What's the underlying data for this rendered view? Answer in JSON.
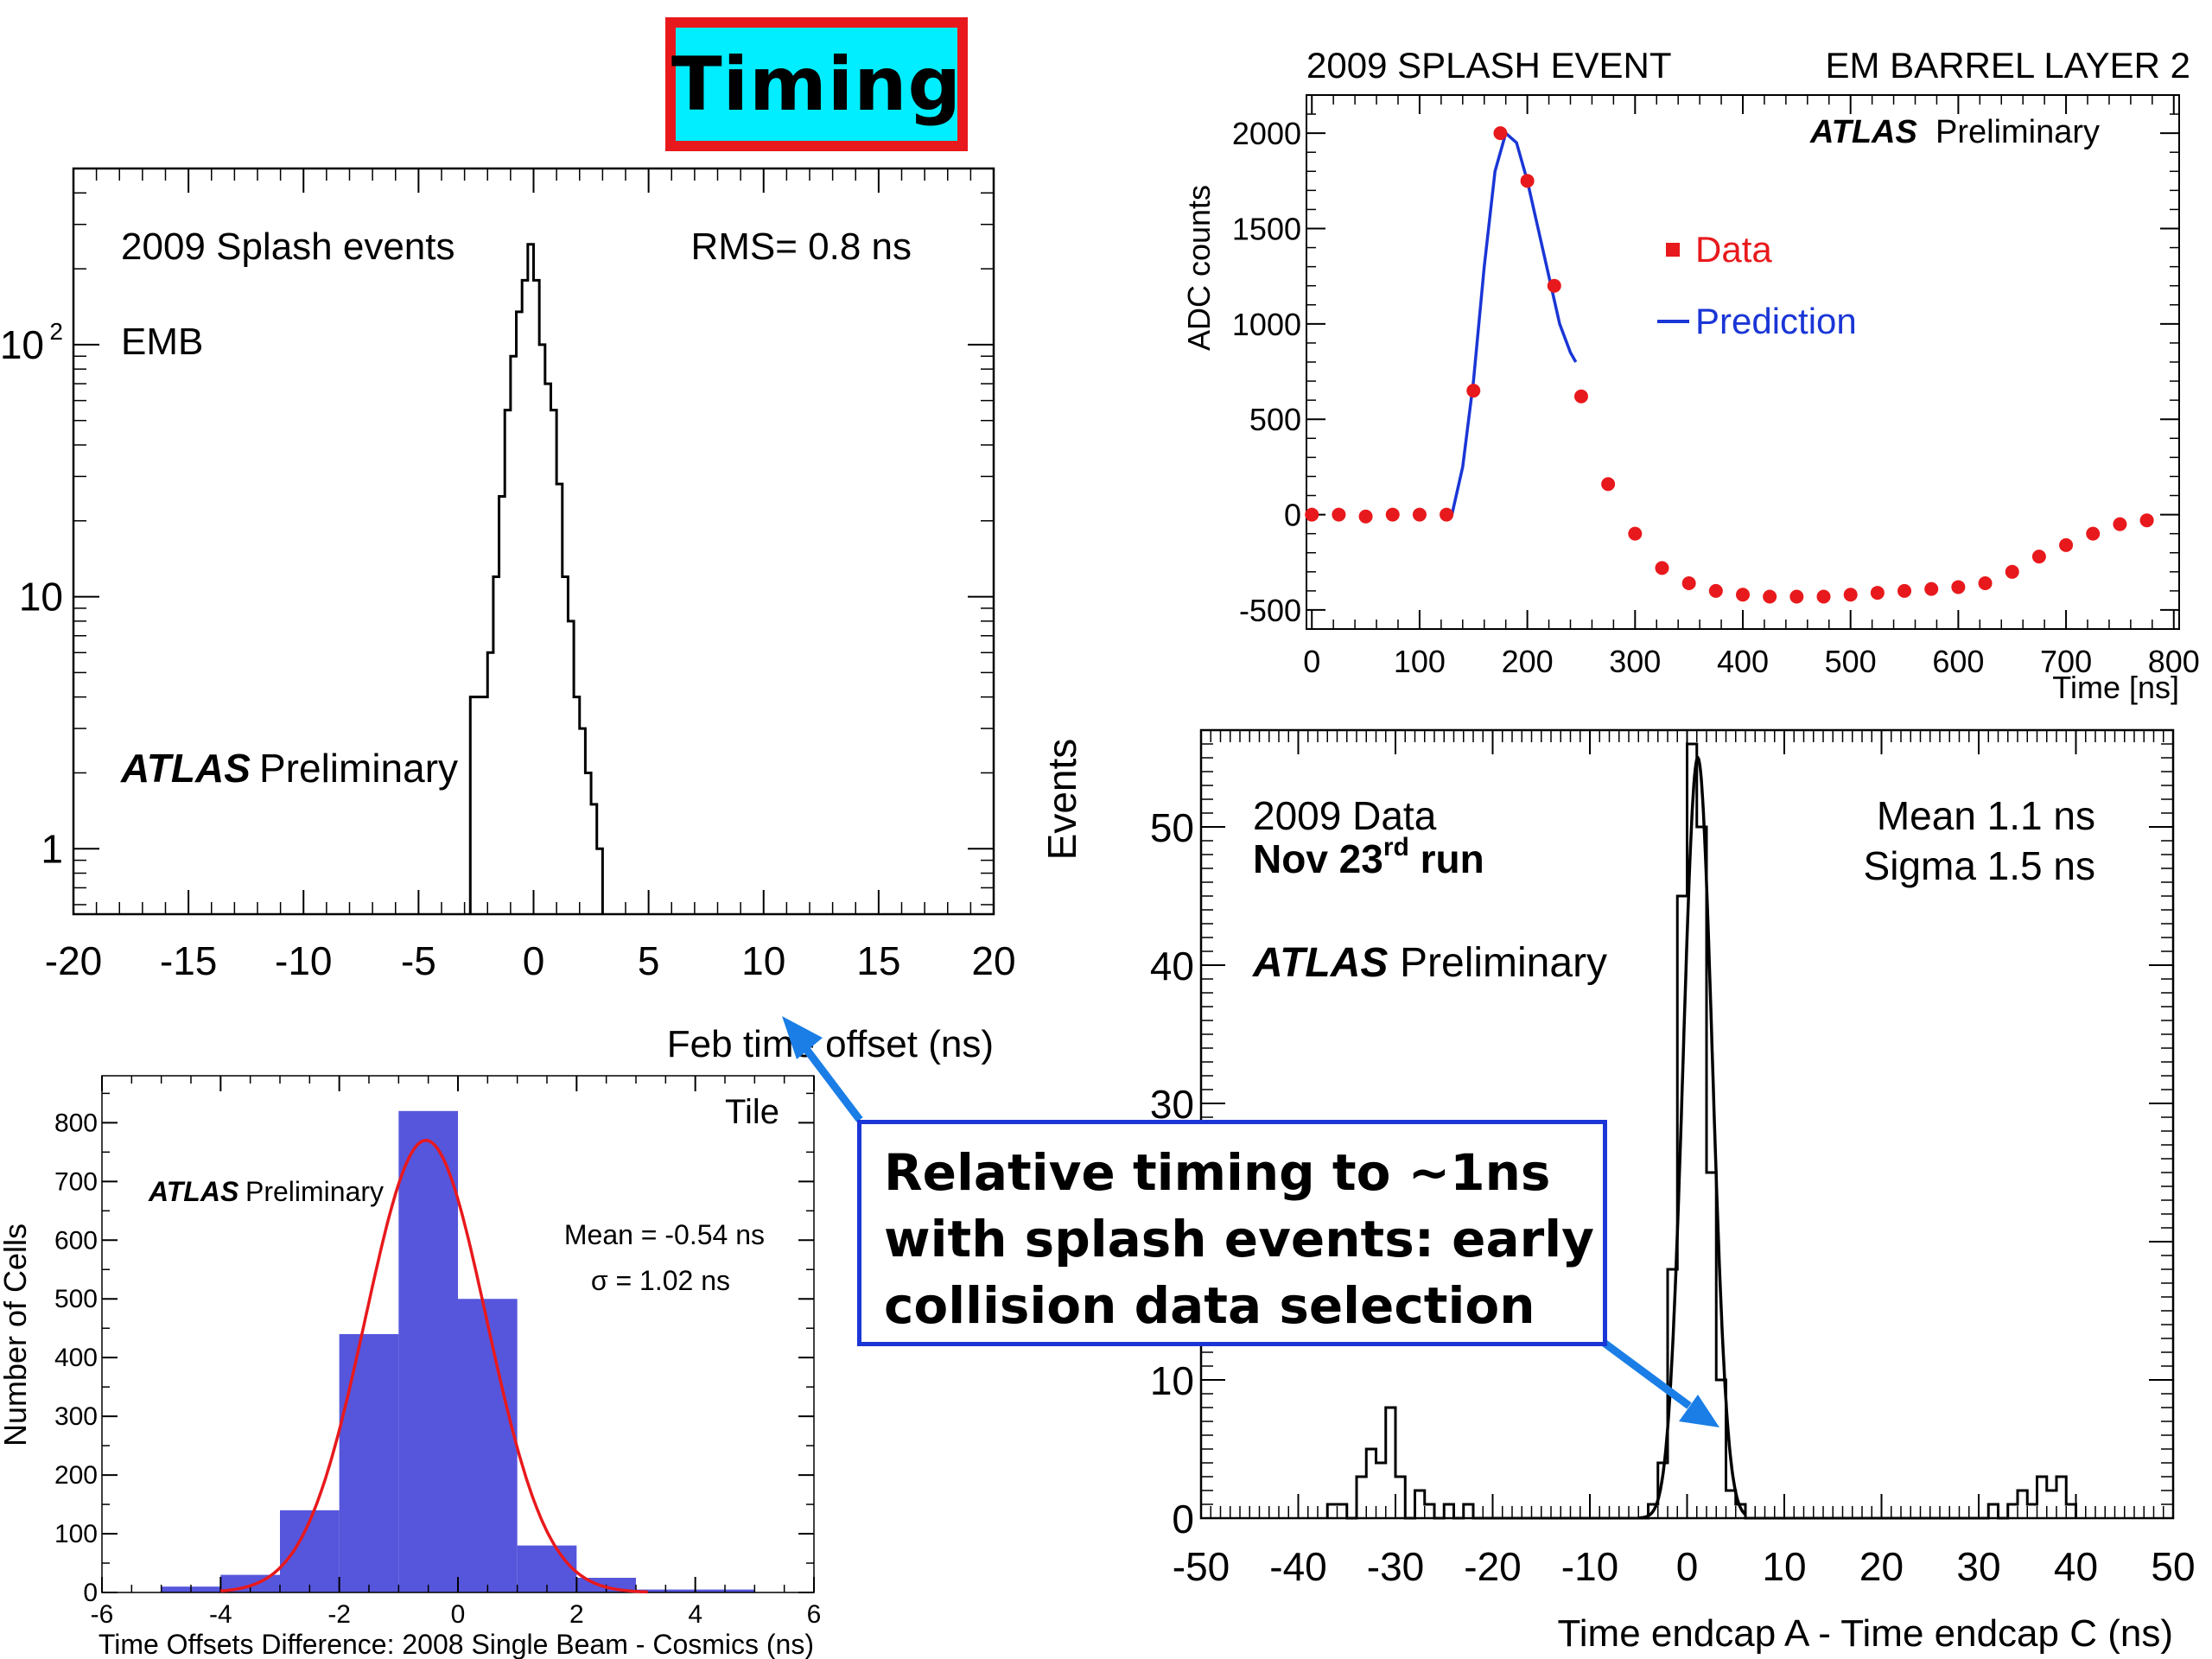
{
  "slide": {
    "title": "Timing",
    "callout_lines": [
      "Relative timing to ~1ns",
      "with splash events: early",
      "collision data selection"
    ],
    "colors": {
      "title_bg": "#00eeff",
      "title_border": "#e8191c",
      "callout_border": "#1a36d6",
      "arrow": "#1a7ee6"
    }
  },
  "chart_data": [
    {
      "id": "emb",
      "type": "histogram",
      "yscale": "log",
      "xlim": [
        -20,
        20
      ],
      "ylim": [
        0.55,
        500
      ],
      "xticks": [
        -20,
        -15,
        -10,
        -5,
        0,
        5,
        10,
        15,
        20
      ],
      "yticks": [
        {
          "value": 1,
          "label": "1"
        },
        {
          "value": 10,
          "label": "10"
        },
        {
          "value": 100,
          "label": "10",
          "sup": "2"
        }
      ],
      "xlabel": "Feb time offset (ns)",
      "annotations": {
        "text1": "2009 Splash events",
        "text2": "EMB",
        "rms": "RMS= 0.8 ns",
        "atlas": "ATLAS",
        "prelim": "Preliminary"
      },
      "bin_edges": [
        -2.75,
        -2.5,
        -2.25,
        -2.0,
        -1.75,
        -1.5,
        -1.25,
        -1.0,
        -0.75,
        -0.5,
        -0.25,
        0.0,
        0.25,
        0.5,
        0.75,
        1.0,
        1.25,
        1.5,
        1.75,
        2.0,
        2.25,
        2.5,
        2.75,
        3.0
      ],
      "counts": [
        4,
        4,
        4,
        6,
        12,
        25,
        55,
        90,
        135,
        180,
        250,
        180,
        100,
        70,
        55,
        28,
        12,
        8,
        4,
        3,
        2,
        1.5,
        1.0
      ]
    },
    {
      "id": "splash",
      "type": "scatter",
      "title_left": "2009 SPLASH EVENT",
      "title_right": "EM BARREL LAYER 2",
      "xlim": [
        -5,
        805
      ],
      "ylim": [
        -600,
        2200
      ],
      "xticks": [
        0,
        100,
        200,
        300,
        400,
        500,
        600,
        700,
        800
      ],
      "yticks": [
        -500,
        0,
        500,
        1000,
        1500,
        2000
      ],
      "xlabel": "Time [ns]",
      "ylabel": "ADC counts",
      "annotations": {
        "atlas": "ATLAS",
        "prelim": "Preliminary"
      },
      "legend": [
        {
          "label": "Data",
          "color": "#e8191c"
        },
        {
          "label": "Prediction",
          "color": "#1a36d6"
        }
      ],
      "series": [
        {
          "name": "Data",
          "x": [
            0,
            25,
            50,
            75,
            100,
            125,
            150,
            175,
            200,
            225,
            250,
            275,
            300,
            325,
            350,
            375,
            400,
            425,
            450,
            475,
            500,
            525,
            550,
            575,
            600,
            625,
            650,
            675,
            700,
            725,
            750,
            775
          ],
          "y": [
            0,
            0,
            -10,
            0,
            0,
            0,
            650,
            2000,
            1750,
            1200,
            620,
            160,
            -100,
            -280,
            -360,
            -400,
            -420,
            -430,
            -430,
            -430,
            -420,
            -410,
            -400,
            -390,
            -380,
            -360,
            -300,
            -220,
            -160,
            -100,
            -50,
            -30
          ]
        },
        {
          "name": "Prediction",
          "x": [
            130,
            140,
            150,
            160,
            170,
            180,
            190,
            200,
            210,
            220,
            230,
            240,
            245
          ],
          "y": [
            0,
            250,
            700,
            1300,
            1800,
            2000,
            1950,
            1750,
            1500,
            1250,
            1000,
            850,
            800
          ]
        }
      ]
    },
    {
      "id": "tile",
      "type": "histogram",
      "xlim": [
        -6,
        6
      ],
      "ylim": [
        0,
        880
      ],
      "xticks": [
        -6,
        -4,
        -2,
        0,
        2,
        4,
        6
      ],
      "yticks": [
        0,
        100,
        200,
        300,
        400,
        500,
        600,
        700,
        800
      ],
      "xlabel": "Time Offsets Difference: 2008 Single Beam - Cosmics (ns)",
      "ylabel": "Number of Cells",
      "annotations": {
        "tile": "Tile",
        "atlas": "ATLAS",
        "prelim": "Preliminary",
        "mean": "Mean = -0.54 ns",
        "sigma": "σ = 1.02 ns"
      },
      "bin_edges": [
        -5,
        -4,
        -3,
        -2,
        -1,
        0,
        1,
        2,
        3,
        4,
        5
      ],
      "counts": [
        10,
        30,
        140,
        440,
        820,
        500,
        80,
        25,
        5,
        5
      ],
      "fit": {
        "mean": -0.54,
        "sigma": 1.02,
        "amplitude": 770
      },
      "colors": {
        "fill": "#5656dc",
        "fit": "#e8191c"
      }
    },
    {
      "id": "endcap",
      "type": "histogram",
      "xlim": [
        -50,
        50
      ],
      "ylim": [
        0,
        57
      ],
      "xticks": [
        -50,
        -40,
        -30,
        -20,
        -10,
        0,
        10,
        20,
        30,
        40,
        50
      ],
      "yticks": [
        0,
        10,
        20,
        30,
        40,
        50
      ],
      "xlabel": "Time endcap A - Time endcap C (ns)",
      "ylabel": "Events",
      "annotations": {
        "text1": "2009 Data",
        "text2_pre": "Nov 23",
        "text2_sup": "rd",
        "text2_post": " run",
        "mean": "Mean  1.1 ns",
        "sigma": "Sigma 1.5 ns",
        "atlas": "ATLAS",
        "prelim": "Preliminary"
      },
      "bin_edges": [
        -37,
        -36,
        -35,
        -34,
        -33,
        -32,
        -31,
        -30,
        -29,
        -28,
        -27,
        -26,
        -25,
        -24,
        -23,
        -22,
        -21,
        -20,
        -19,
        -18,
        -17,
        -16,
        -15,
        -14,
        -13,
        -12,
        -11,
        -10,
        -9,
        -8,
        -7,
        -6,
        -5,
        -4,
        -3,
        -2,
        -1,
        0,
        1,
        2,
        3,
        4,
        5,
        6,
        7,
        8,
        9,
        10,
        11,
        12,
        13,
        14,
        15,
        16,
        17,
        18,
        19,
        20,
        21,
        22,
        23,
        24,
        25,
        26,
        27,
        28,
        29,
        30,
        31,
        32,
        33,
        34,
        35,
        36,
        37,
        38,
        39,
        40
      ],
      "counts": [
        1,
        1,
        0,
        3,
        5,
        4,
        8,
        3,
        0,
        2,
        1,
        0,
        1,
        0,
        1,
        0,
        0,
        0,
        0,
        0,
        0,
        0,
        0,
        0,
        0,
        0,
        0,
        0,
        0,
        0,
        0,
        0,
        0,
        1,
        4,
        18,
        45,
        56,
        50,
        25,
        10,
        2,
        1,
        0,
        0,
        0,
        0,
        0,
        0,
        0,
        0,
        0,
        0,
        0,
        0,
        0,
        0,
        0,
        0,
        0,
        0,
        0,
        0,
        0,
        0,
        0,
        0,
        0,
        1,
        0,
        1,
        2,
        1,
        3,
        2,
        3,
        1
      ],
      "fit": {
        "mean": 1.1,
        "sigma": 1.5,
        "amplitude": 55
      }
    }
  ]
}
